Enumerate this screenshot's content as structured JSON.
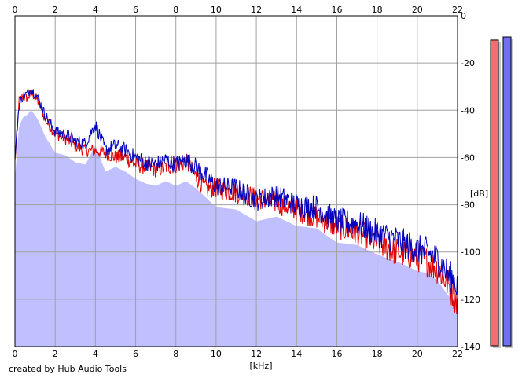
{
  "chart_data": {
    "type": "area",
    "xlabel": "[kHz]",
    "ylabel": "[dB]",
    "xlim": [
      0,
      22
    ],
    "ylim": [
      -140,
      0
    ],
    "x_ticks": [
      0,
      2,
      4,
      6,
      8,
      10,
      12,
      14,
      16,
      18,
      20,
      22
    ],
    "y_ticks": [
      0,
      -20,
      -40,
      -60,
      -80,
      -100,
      -120,
      -140
    ],
    "y_tick_labels": [
      "0",
      "-20",
      "-40",
      "-60",
      "-80",
      "-100",
      "-120",
      "-140"
    ],
    "grid": true,
    "series": [
      {
        "color": "#e00000",
        "x": [
          0,
          0.2,
          0.4,
          0.6,
          0.8,
          1.0,
          1.2,
          1.5,
          2.0,
          2.5,
          3.0,
          3.5,
          4.0,
          4.5,
          5.0,
          5.5,
          6.0,
          6.5,
          7.0,
          7.5,
          8.0,
          8.5,
          9.0,
          9.5,
          10.0,
          11.0,
          12.0,
          13.0,
          14.0,
          15.0,
          16.0,
          17.0,
          18.0,
          19.0,
          20.0,
          20.5,
          21.0,
          21.5,
          22.0
        ],
        "values": [
          -62,
          -36,
          -34,
          -35,
          -33,
          -34,
          -37,
          -44,
          -50,
          -52,
          -55,
          -57,
          -57,
          -58,
          -60,
          -60,
          -63,
          -64,
          -65,
          -64,
          -63,
          -62,
          -68,
          -73,
          -73,
          -75,
          -77,
          -79,
          -82,
          -85,
          -89,
          -92,
          -96,
          -100,
          -102,
          -104,
          -107,
          -113,
          -121
        ]
      },
      {
        "color": "#0000c0",
        "x": [
          0,
          0.2,
          0.4,
          0.6,
          0.8,
          1.0,
          1.2,
          1.5,
          2.0,
          2.5,
          3.0,
          3.5,
          4.0,
          4.5,
          5.0,
          5.5,
          6.0,
          6.5,
          7.0,
          7.5,
          8.0,
          8.5,
          9.0,
          9.5,
          10.0,
          11.0,
          12.0,
          13.0,
          14.0,
          15.0,
          16.0,
          17.0,
          18.0,
          19.0,
          20.0,
          20.5,
          21.0,
          21.5,
          22.0
        ],
        "values": [
          -60,
          -38,
          -34,
          -33,
          -31,
          -33,
          -36,
          -42,
          -49,
          -50,
          -53,
          -54,
          -46,
          -57,
          -55,
          -57,
          -60,
          -62,
          -63,
          -61,
          -63,
          -61,
          -64,
          -68,
          -72,
          -73,
          -78,
          -76,
          -80,
          -81,
          -87,
          -88,
          -92,
          -95,
          -99,
          -100,
          -103,
          -109,
          -114
        ]
      }
    ]
  },
  "meters": [
    {
      "color": "#f07070",
      "level": 0.99
    },
    {
      "color": "#7070f0",
      "level": 1.0
    }
  ],
  "area_color": "#c0c0ff",
  "credit": "created by Hub Audio Tools"
}
